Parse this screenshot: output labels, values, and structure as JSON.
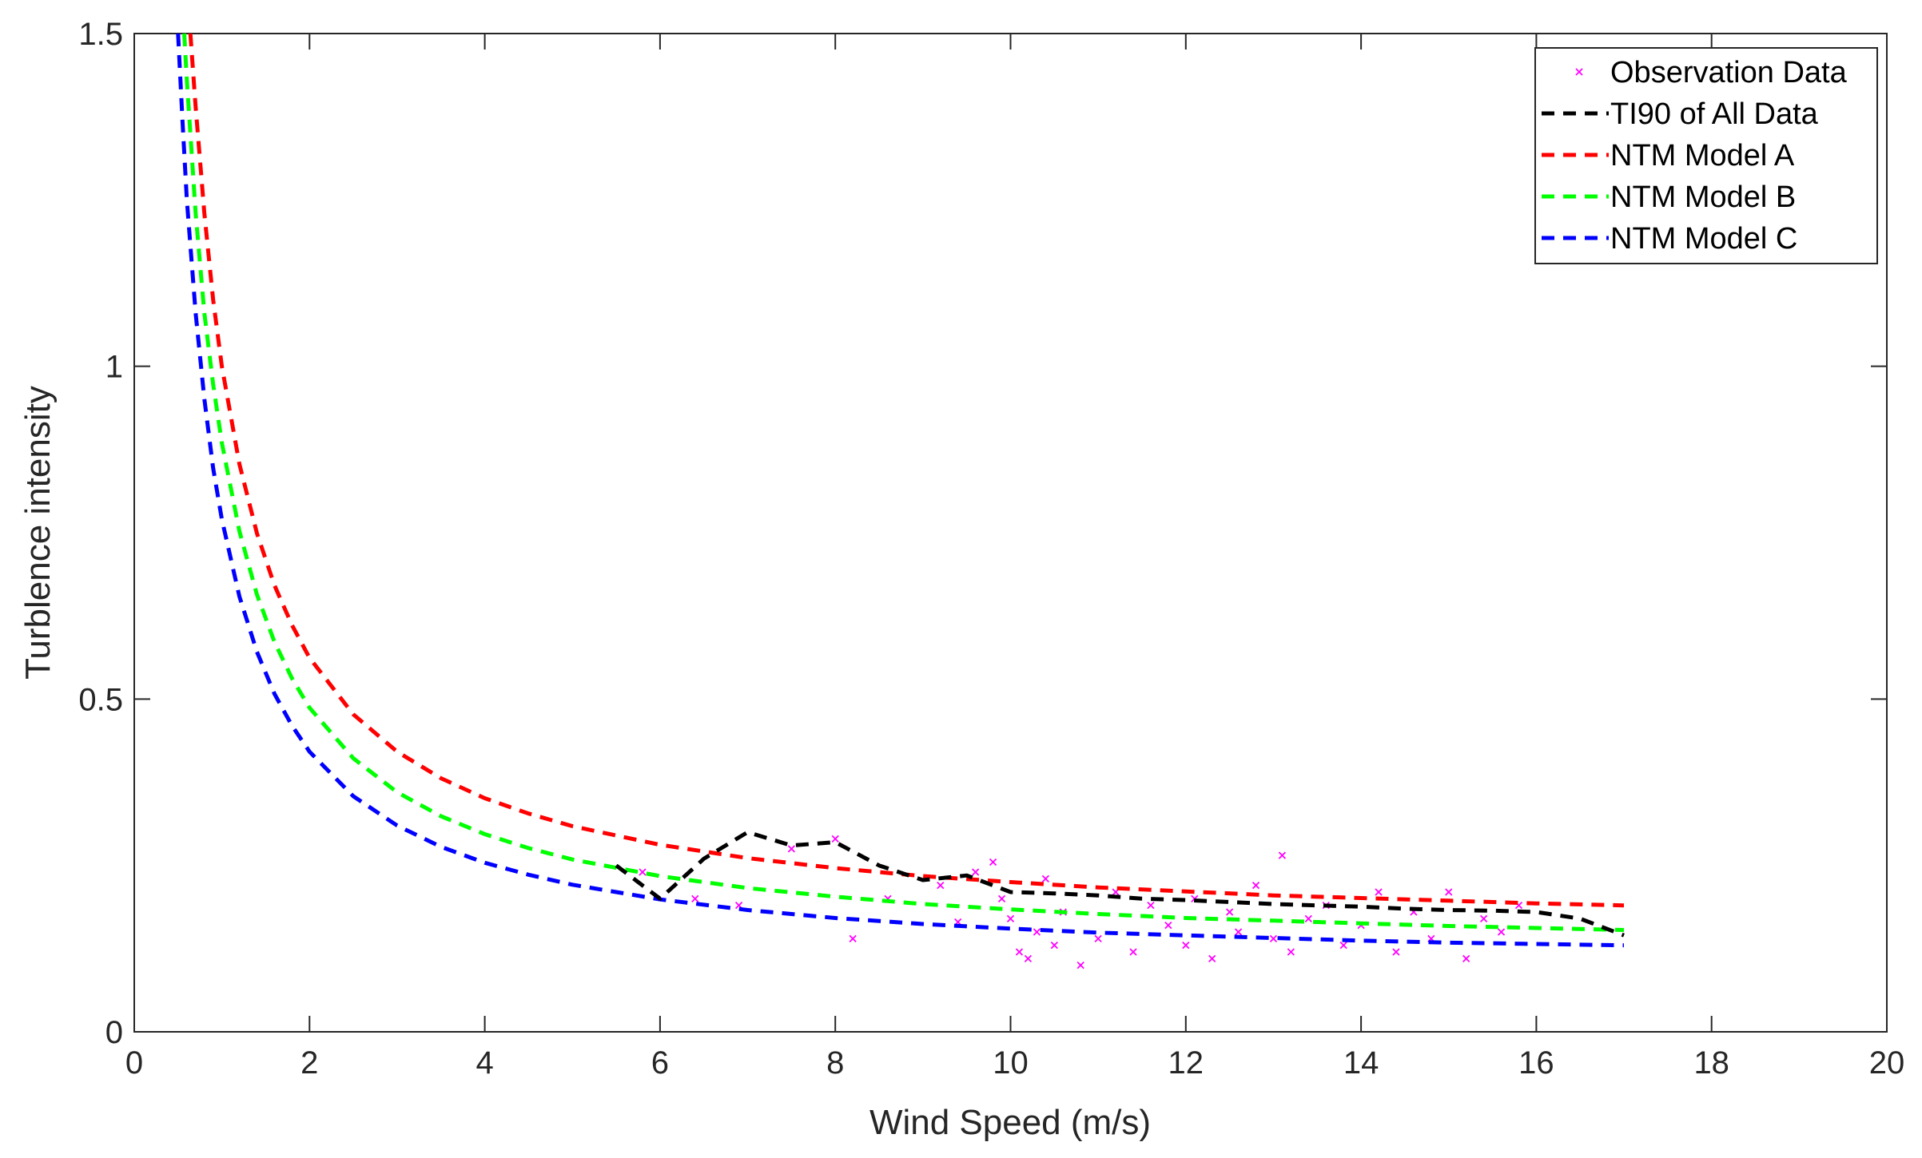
{
  "chart_data": {
    "type": "line",
    "xlabel": "Wind Speed (m/s)",
    "ylabel": "Turblence intensity",
    "xlim": [
      0,
      20
    ],
    "ylim": [
      0,
      1.5
    ],
    "xticks": [
      "0",
      "2",
      "4",
      "6",
      "8",
      "10",
      "12",
      "14",
      "16",
      "18",
      "20"
    ],
    "yticks": [
      "0",
      "0.5",
      "1",
      "1.5"
    ],
    "grid": false,
    "legend_position": "top-right",
    "legend": [
      {
        "label": "Observation Data",
        "color": "#ff00ff",
        "style": "marker-x"
      },
      {
        "label": "TI90 of All Data",
        "color": "#000000",
        "style": "dashed"
      },
      {
        "label": "NTM Model A",
        "color": "#ff0000",
        "style": "dashed"
      },
      {
        "label": "NTM Model B",
        "color": "#00ff00",
        "style": "dashed"
      },
      {
        "label": "NTM Model C",
        "color": "#0000ff",
        "style": "dashed"
      }
    ],
    "series": [
      {
        "name": "NTM Model A",
        "color": "#ff0000",
        "x": [
          0.64,
          0.7,
          0.8,
          0.9,
          1.0,
          1.2,
          1.4,
          1.6,
          1.8,
          2.0,
          2.5,
          3.0,
          3.5,
          4.0,
          4.5,
          5.0,
          6.0,
          7.0,
          8.0,
          9.0,
          10.0,
          11.0,
          12.0,
          13.0,
          14.0,
          15.0,
          16.0,
          17.0
        ],
        "y": [
          1.5,
          1.39,
          1.23,
          1.1,
          1.0,
          0.853,
          0.749,
          0.671,
          0.611,
          0.562,
          0.477,
          0.421,
          0.381,
          0.351,
          0.328,
          0.309,
          0.281,
          0.261,
          0.246,
          0.234,
          0.225,
          0.217,
          0.211,
          0.205,
          0.201,
          0.197,
          0.193,
          0.19
        ]
      },
      {
        "name": "NTM Model B",
        "color": "#00ff00",
        "x": [
          0.57,
          0.6,
          0.7,
          0.8,
          0.9,
          1.0,
          1.2,
          1.4,
          1.6,
          1.8,
          2.0,
          2.5,
          3.0,
          3.5,
          4.0,
          4.5,
          5.0,
          6.0,
          7.0,
          8.0,
          9.0,
          10.0,
          11.0,
          12.0,
          13.0,
          14.0,
          15.0,
          16.0,
          17.0
        ],
        "y": [
          1.5,
          1.43,
          1.23,
          1.08,
          0.973,
          0.885,
          0.752,
          0.657,
          0.586,
          0.531,
          0.487,
          0.411,
          0.36,
          0.324,
          0.297,
          0.276,
          0.259,
          0.234,
          0.216,
          0.203,
          0.192,
          0.184,
          0.177,
          0.171,
          0.167,
          0.163,
          0.159,
          0.156,
          0.153
        ]
      },
      {
        "name": "NTM Model C",
        "color": "#0000ff",
        "x": [
          0.5,
          0.55,
          0.6,
          0.7,
          0.8,
          0.9,
          1.0,
          1.2,
          1.4,
          1.6,
          1.8,
          2.0,
          2.5,
          3.0,
          3.5,
          4.0,
          4.5,
          5.0,
          6.0,
          7.0,
          8.0,
          9.0,
          10.0,
          11.0,
          12.0,
          13.0,
          14.0,
          15.0,
          16.0,
          17.0
        ],
        "y": [
          1.5,
          1.37,
          1.25,
          1.08,
          0.951,
          0.847,
          0.77,
          0.654,
          0.571,
          0.508,
          0.46,
          0.421,
          0.354,
          0.31,
          0.278,
          0.254,
          0.236,
          0.221,
          0.199,
          0.183,
          0.171,
          0.162,
          0.155,
          0.149,
          0.145,
          0.141,
          0.137,
          0.134,
          0.132,
          0.13
        ]
      },
      {
        "name": "TI90 of All Data",
        "color": "#000000",
        "x": [
          5.5,
          6.0,
          6.5,
          7.0,
          7.5,
          8.0,
          8.5,
          9.0,
          9.5,
          10.0,
          10.5,
          11.0,
          11.5,
          12.0,
          12.5,
          13.0,
          13.5,
          14.0,
          14.5,
          15.0,
          15.5,
          16.0,
          16.5,
          17.0
        ],
        "y": [
          0.25,
          0.2,
          0.26,
          0.3,
          0.28,
          0.285,
          0.25,
          0.228,
          0.235,
          0.21,
          0.208,
          0.205,
          0.2,
          0.198,
          0.195,
          0.192,
          0.19,
          0.188,
          0.185,
          0.183,
          0.182,
          0.18,
          0.17,
          0.145
        ]
      }
    ],
    "scatter": {
      "name": "Observation Data",
      "color": "#ff00ff",
      "points": [
        [
          5.8,
          0.24
        ],
        [
          6.4,
          0.2
        ],
        [
          6.9,
          0.19
        ],
        [
          7.5,
          0.275
        ],
        [
          8.0,
          0.29
        ],
        [
          8.2,
          0.14
        ],
        [
          8.6,
          0.2
        ],
        [
          9.2,
          0.22
        ],
        [
          9.4,
          0.165
        ],
        [
          9.6,
          0.24
        ],
        [
          9.8,
          0.255
        ],
        [
          9.9,
          0.2
        ],
        [
          10.0,
          0.17
        ],
        [
          10.1,
          0.12
        ],
        [
          10.2,
          0.11
        ],
        [
          10.3,
          0.15
        ],
        [
          10.4,
          0.23
        ],
        [
          10.5,
          0.13
        ],
        [
          10.6,
          0.18
        ],
        [
          10.8,
          0.1
        ],
        [
          11.0,
          0.14
        ],
        [
          11.2,
          0.21
        ],
        [
          11.4,
          0.12
        ],
        [
          11.6,
          0.19
        ],
        [
          11.8,
          0.16
        ],
        [
          12.0,
          0.13
        ],
        [
          12.1,
          0.2
        ],
        [
          12.3,
          0.11
        ],
        [
          12.5,
          0.18
        ],
        [
          12.6,
          0.15
        ],
        [
          12.8,
          0.22
        ],
        [
          13.0,
          0.14
        ],
        [
          13.1,
          0.265
        ],
        [
          13.2,
          0.12
        ],
        [
          13.4,
          0.17
        ],
        [
          13.6,
          0.19
        ],
        [
          13.8,
          0.13
        ],
        [
          14.0,
          0.16
        ],
        [
          14.2,
          0.21
        ],
        [
          14.4,
          0.12
        ],
        [
          14.6,
          0.18
        ],
        [
          14.8,
          0.14
        ],
        [
          15.0,
          0.21
        ],
        [
          15.2,
          0.11
        ],
        [
          15.4,
          0.17
        ],
        [
          15.6,
          0.15
        ],
        [
          15.8,
          0.19
        ]
      ]
    }
  }
}
